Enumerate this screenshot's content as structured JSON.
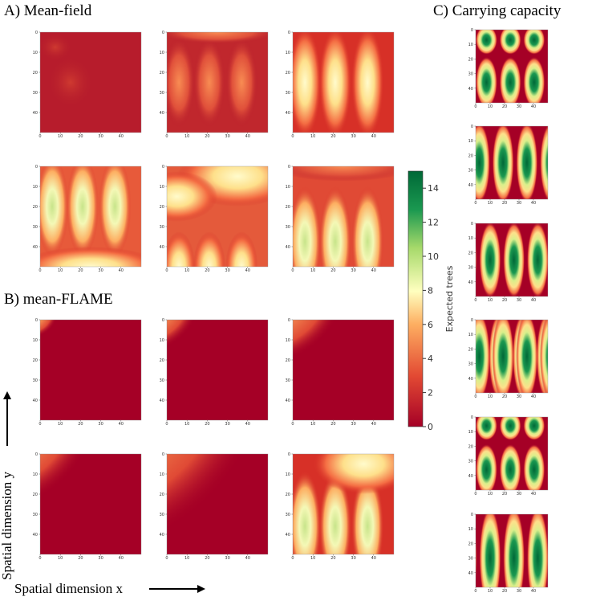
{
  "panels": {
    "a": "A) Mean-field",
    "b": "B) mean-FLAME",
    "c": "C) Carrying capacity"
  },
  "heatmap_ticks": [
    0,
    10,
    20,
    30,
    40
  ],
  "axis_labels": {
    "x": "Spatial dimension x",
    "y": "Spatial dimension y"
  },
  "colorbar": {
    "label": "Expected trees",
    "lim": [
      0,
      15
    ],
    "ticks": [
      0,
      2,
      4,
      6,
      8,
      10,
      12,
      14
    ]
  }
}
